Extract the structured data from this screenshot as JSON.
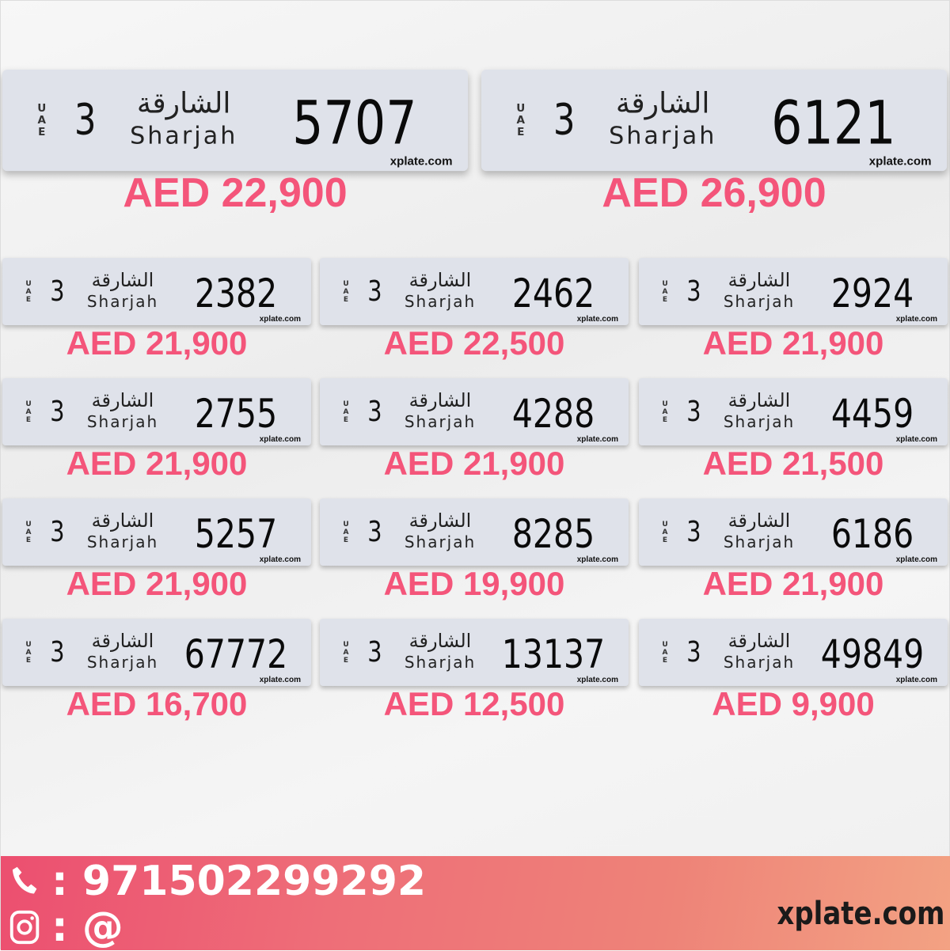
{
  "plate_common": {
    "country_letters": [
      "U",
      "A",
      "E"
    ],
    "emirate_arabic": "الشارقة",
    "emirate_english": "Sharjah",
    "watermark": "xplate.com"
  },
  "featured": [
    {
      "code": "3",
      "number": "5707",
      "price": "AED 22,900"
    },
    {
      "code": "3",
      "number": "6121",
      "price": "AED 26,900"
    }
  ],
  "plates": [
    {
      "code": "3",
      "number": "2382",
      "price": "AED 21,900"
    },
    {
      "code": "3",
      "number": "2462",
      "price": "AED 22,500"
    },
    {
      "code": "3",
      "number": "2924",
      "price": "AED 21,900"
    },
    {
      "code": "3",
      "number": "2755",
      "price": "AED 21,900"
    },
    {
      "code": "3",
      "number": "4288",
      "price": "AED 21,900"
    },
    {
      "code": "3",
      "number": "4459",
      "price": "AED 21,500"
    },
    {
      "code": "3",
      "number": "5257",
      "price": "AED 21,900"
    },
    {
      "code": "3",
      "number": "8285",
      "price": "AED 19,900"
    },
    {
      "code": "3",
      "number": "6186",
      "price": "AED 21,900"
    },
    {
      "code": "3",
      "number": "67772",
      "price": "AED 16,700"
    },
    {
      "code": "3",
      "number": "13137",
      "price": "AED 12,500"
    },
    {
      "code": "3",
      "number": "49849",
      "price": "AED 9,900"
    }
  ],
  "footer": {
    "phone_icon": "phone-icon",
    "instagram_icon": "instagram-icon",
    "phone": ": 971502299292",
    "instagram": ": @",
    "site": "xplate.com"
  },
  "colors": {
    "price": "#f4557a",
    "plate": "#dfe2ea",
    "footer_start": "#ec4f70",
    "footer_end": "#f3a283"
  }
}
